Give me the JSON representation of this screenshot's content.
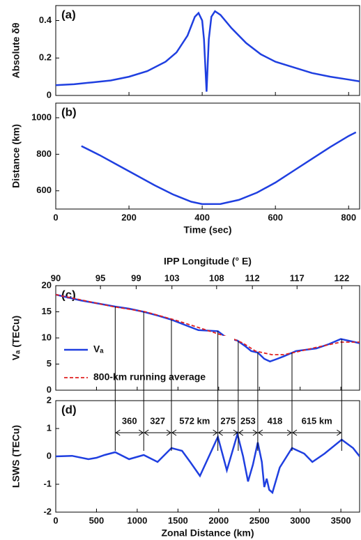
{
  "chart_data": [
    {
      "type": "line",
      "panel_label": "(a)",
      "ylabel": "Absolute δθ",
      "color": "#1f3fe0",
      "x": [
        0,
        50,
        100,
        150,
        200,
        250,
        300,
        330,
        360,
        380,
        390,
        400,
        405,
        412,
        418,
        425,
        435,
        450,
        480,
        520,
        560,
        600,
        650,
        700,
        750,
        800,
        830
      ],
      "values": [
        0.055,
        0.06,
        0.07,
        0.08,
        0.1,
        0.13,
        0.18,
        0.23,
        0.32,
        0.42,
        0.44,
        0.4,
        0.3,
        0.02,
        0.3,
        0.42,
        0.45,
        0.43,
        0.36,
        0.28,
        0.22,
        0.18,
        0.15,
        0.12,
        0.1,
        0.085,
        0.075
      ],
      "xlim": [
        0,
        830
      ],
      "ylim": [
        0,
        0.48
      ],
      "yticks": [
        0,
        0.2,
        0.4
      ],
      "xticks": [
        0,
        200,
        400,
        600,
        800
      ]
    },
    {
      "type": "line",
      "panel_label": "(b)",
      "ylabel": "Distance (km)",
      "xlabel": "Time (sec)",
      "color": "#1f3fe0",
      "x": [
        70,
        120,
        170,
        220,
        270,
        320,
        370,
        400,
        450,
        500,
        550,
        600,
        650,
        700,
        750,
        800,
        820
      ],
      "values": [
        845,
        795,
        740,
        685,
        630,
        580,
        540,
        527,
        528,
        550,
        590,
        645,
        710,
        775,
        840,
        900,
        920
      ],
      "xlim": [
        0,
        830
      ],
      "ylim": [
        500,
        1080
      ],
      "yticks": [
        600,
        800,
        1000
      ],
      "xticks": [
        0,
        200,
        400,
        600,
        800
      ]
    },
    {
      "type": "line",
      "panel_label": "(c)",
      "ylabel": "Vₐ (TECu)",
      "x2label": "IPP Longitude (° E)",
      "series": [
        {
          "name": "Vₐ",
          "color": "#1f3fe0",
          "linestyle": "solid",
          "x": [
            0,
            300,
            730,
            900,
            1080,
            1250,
            1420,
            1600,
            1750,
            1990,
            2100,
            2230,
            2320,
            2400,
            2480,
            2560,
            2630,
            2720,
            2800,
            2950,
            3200,
            3350,
            3500,
            3730
          ],
          "values": [
            18.3,
            17.2,
            16,
            15.6,
            15,
            14.3,
            13.5,
            12.4,
            11.5,
            11.3,
            10,
            9.5,
            8.5,
            7.5,
            7.2,
            6,
            5.5,
            6,
            6.5,
            7.5,
            8,
            8.8,
            9.8,
            9
          ]
        },
        {
          "name": "800-km running average",
          "color": "#e02020",
          "linestyle": "dashed",
          "x": [
            0,
            700,
            1100,
            1450,
            1750,
            1950,
            2150,
            2300,
            2450,
            2650,
            2800,
            2950,
            3200,
            3500,
            3730
          ],
          "values": [
            18.3,
            16,
            15,
            13.5,
            12,
            11,
            10,
            9,
            7.5,
            6.8,
            6.8,
            7.3,
            8.2,
            9.2,
            9.2
          ]
        }
      ],
      "xlim": [
        0,
        3730
      ],
      "ylim": [
        0,
        20
      ],
      "yticks": [
        0,
        5,
        10,
        15,
        20
      ],
      "xticks": [
        0,
        500,
        1000,
        1500,
        2000,
        2500,
        3000,
        3500
      ],
      "x2lim": [
        90,
        124
      ],
      "x2ticks": [
        90,
        95,
        99,
        103,
        108,
        112,
        117,
        122
      ]
    },
    {
      "type": "line",
      "panel_label": "(d)",
      "ylabel": "LSWS (TECu)",
      "xlabel": "Zonal Distance (km)",
      "color": "#1f3fe0",
      "x": [
        0,
        200,
        400,
        500,
        600,
        730,
        900,
        1080,
        1250,
        1420,
        1550,
        1650,
        1770,
        1880,
        1990,
        2100,
        2170,
        2230,
        2300,
        2360,
        2420,
        2480,
        2530,
        2560,
        2590,
        2620,
        2660,
        2750,
        2900,
        3050,
        3150,
        3300,
        3510,
        3650,
        3730
      ],
      "values": [
        0,
        0.02,
        -0.1,
        -0.05,
        0.05,
        0.15,
        -0.1,
        0.05,
        -0.2,
        0.3,
        0.2,
        -0.2,
        -0.7,
        0,
        0.7,
        -0.5,
        0.2,
        0.8,
        0,
        -0.9,
        -0.3,
        0.5,
        -0.2,
        -1.1,
        -0.8,
        -1.2,
        -1.3,
        -0.4,
        0.3,
        0.1,
        -0.2,
        0.1,
        0.6,
        0.3,
        0
      ],
      "xlim": [
        0,
        3730
      ],
      "ylim": [
        -2,
        2
      ],
      "yticks": [
        -2,
        -1,
        0,
        1,
        2
      ],
      "xticks": [
        0,
        500,
        1000,
        1500,
        2000,
        2500,
        3000,
        3500
      ],
      "boundaries": [
        730,
        1080,
        1420,
        1990,
        2240,
        2480,
        2900,
        3510
      ],
      "segment_labels": [
        "360",
        "327",
        "572 km",
        "275",
        "253",
        "418",
        "615 km"
      ]
    }
  ]
}
